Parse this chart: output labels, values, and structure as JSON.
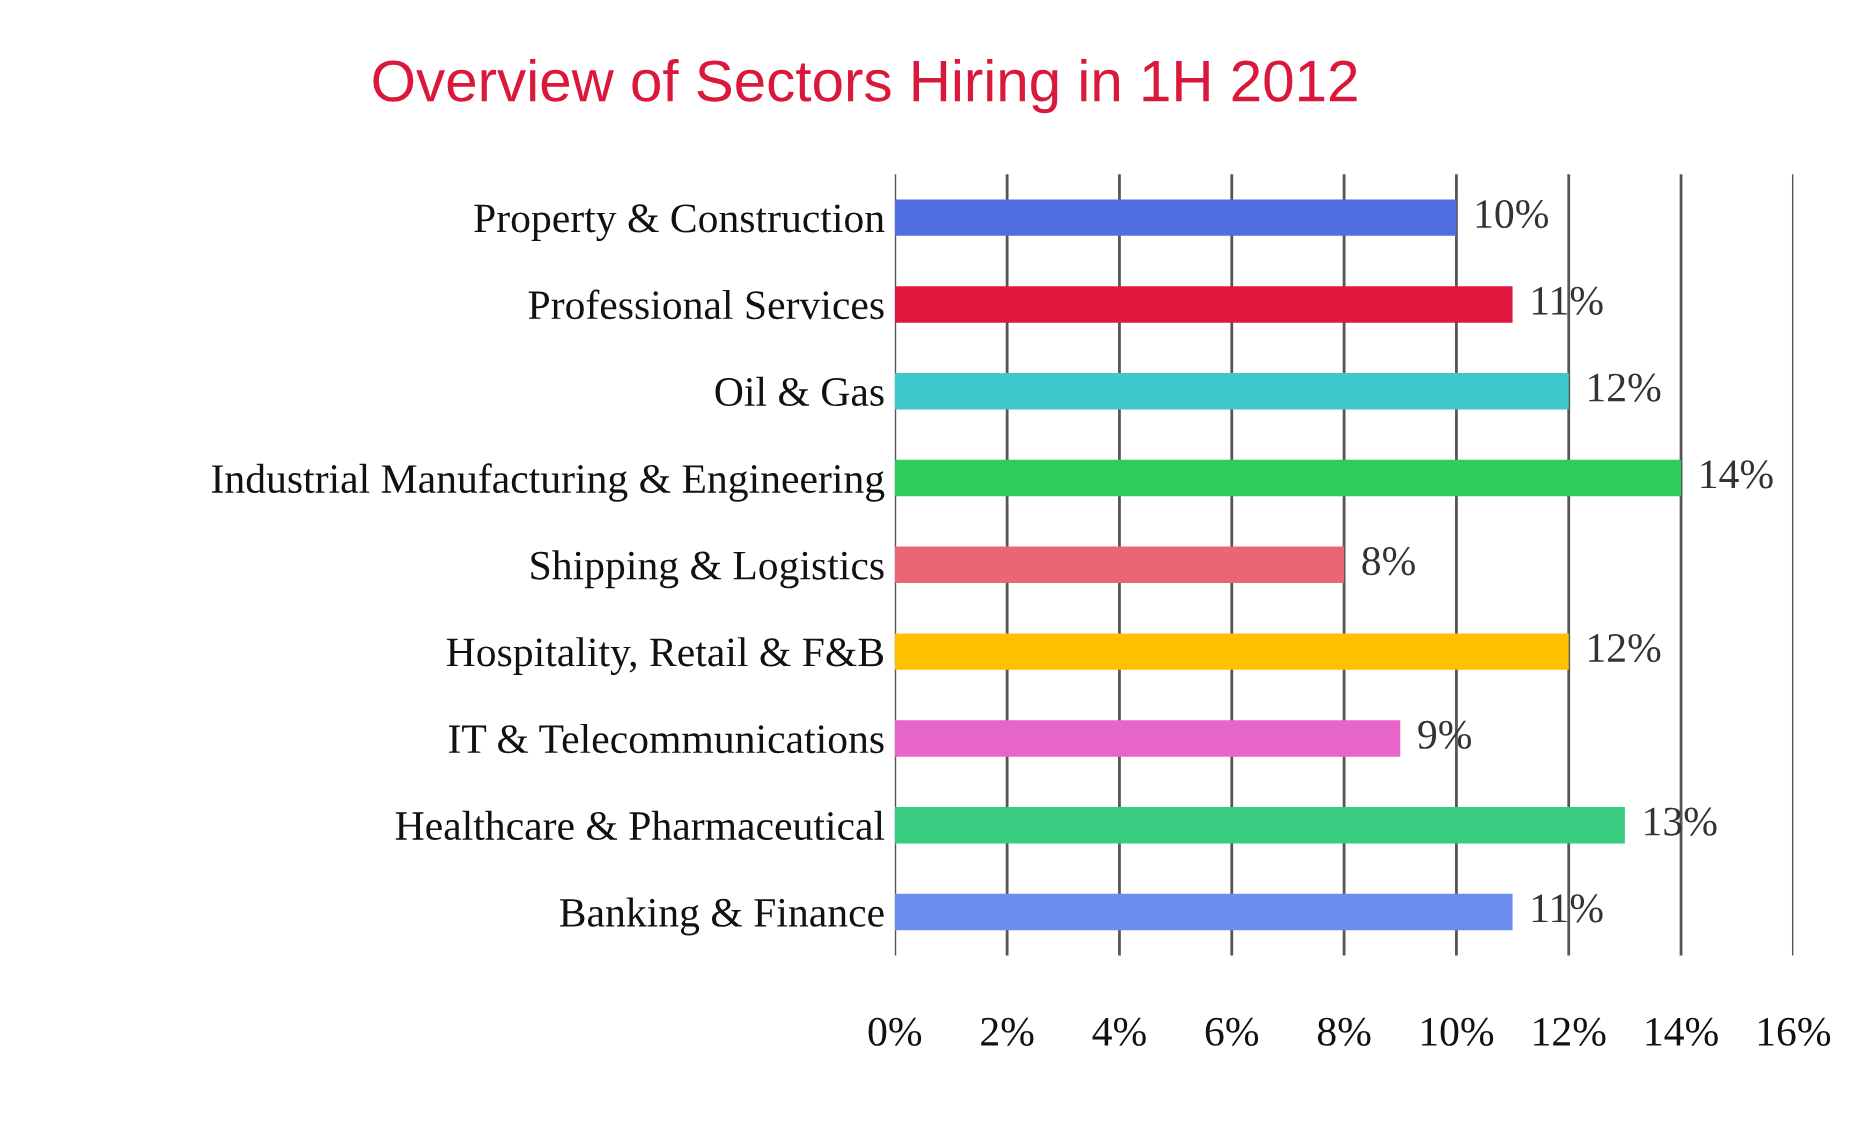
{
  "chart_data": {
    "type": "bar",
    "orientation": "horizontal",
    "title": "Overview of Sectors Hiring in 1H 2012",
    "categories": [
      "Property & Construction",
      "Professional Services",
      "Oil & Gas",
      "Industrial Manufacturing & Engineering",
      "Shipping & Logistics",
      "Hospitality, Retail & F&B",
      "IT & Telecommunications",
      "Healthcare & Pharmaceutical",
      "Banking & Finance"
    ],
    "values": [
      10,
      11,
      12,
      14,
      8,
      12,
      9,
      13,
      11
    ],
    "colors": [
      "#4f6fe0",
      "#e0173f",
      "#3ec8cc",
      "#2ecc5a",
      "#eb6675",
      "#ffc000",
      "#e865c8",
      "#38cc80",
      "#6b8cf0"
    ],
    "value_labels": [
      "10%",
      "11%",
      "12%",
      "14%",
      "8%",
      "12%",
      "9%",
      "13%",
      "11%"
    ],
    "xlim": [
      0,
      16
    ],
    "xticks": [
      {
        "value": 0,
        "label": "0%"
      },
      {
        "value": 2,
        "label": "2%"
      },
      {
        "value": 4,
        "label": "4%"
      },
      {
        "value": 6,
        "label": "6%"
      },
      {
        "value": 8,
        "label": "8%"
      },
      {
        "value": 10,
        "label": "10%"
      },
      {
        "value": 12,
        "label": "12%"
      },
      {
        "value": 14,
        "label": "14%"
      },
      {
        "value": 16,
        "label": "16%"
      }
    ],
    "grid": "x"
  }
}
